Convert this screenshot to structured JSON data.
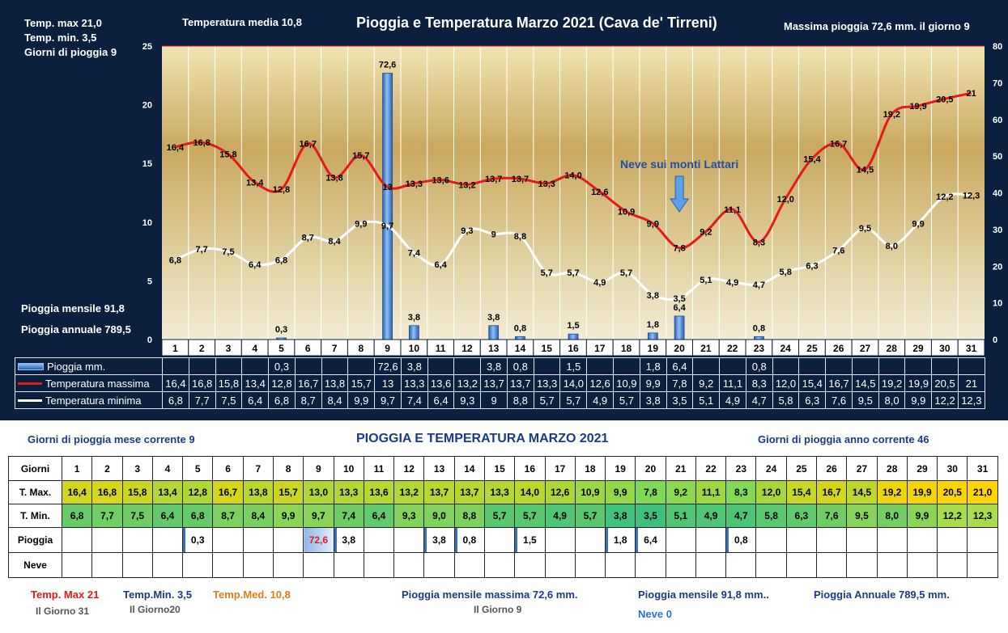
{
  "header": {
    "temp_max": "Temp. max  21,0",
    "temp_min": "Temp.  min. 3,5",
    "giorni_pioggia": "Giorni  di pioggia   9",
    "temp_media": "Temperatura media  10,8",
    "title": "Pioggia e Temperatura Marzo 2021 (Cava de' Tirreni)",
    "massima_pioggia": "Massima pioggia  72,6 mm. il giorno  9",
    "pioggia_mensile": "Pioggia mensile     91,8",
    "pioggia_annuale": "Pioggia annuale    789,5"
  },
  "chart_data": {
    "type": "bar",
    "categories": [
      "1",
      "2",
      "3",
      "4",
      "5",
      "6",
      "7",
      "8",
      "9",
      "10",
      "11",
      "12",
      "13",
      "14",
      "15",
      "16",
      "17",
      "18",
      "19",
      "20",
      "21",
      "22",
      "23",
      "24",
      "25",
      "26",
      "27",
      "28",
      "29",
      "30",
      "31"
    ],
    "y_left": {
      "min": 0,
      "max": 25,
      "ticks": [
        "0",
        "5",
        "10",
        "15",
        "20",
        "25"
      ]
    },
    "y_right": {
      "min": 0,
      "max": 80,
      "ticks": [
        "0",
        "10",
        "20",
        "30",
        "40",
        "50",
        "60",
        "70",
        "80"
      ]
    },
    "series": [
      {
        "name": "Pioggia mm.",
        "type": "bar",
        "axis": "right",
        "color": "#4a86d8",
        "values": [
          null,
          null,
          null,
          null,
          0.3,
          null,
          null,
          null,
          72.6,
          3.8,
          null,
          null,
          3.8,
          0.8,
          null,
          1.5,
          null,
          null,
          1.8,
          6.4,
          null,
          null,
          0.8,
          null,
          null,
          null,
          null,
          null,
          null,
          null,
          null
        ],
        "labels": [
          "",
          "",
          "",
          "",
          "0,3",
          "",
          "",
          "",
          "72,6",
          "3,8",
          "",
          "",
          "3,8",
          "0,8",
          "",
          "1,5",
          "",
          "",
          "1,8",
          "6,4",
          "",
          "",
          "0,8",
          "",
          "",
          "",
          "",
          "",
          "",
          "",
          ""
        ]
      },
      {
        "name": "Temperatura massima",
        "type": "line",
        "axis": "left",
        "color": "#e31a1c",
        "values": [
          16.4,
          16.8,
          15.8,
          13.4,
          12.8,
          16.7,
          13.8,
          15.7,
          13,
          13.3,
          13.6,
          13.2,
          13.7,
          13.7,
          13.3,
          14.0,
          12.6,
          10.9,
          9.9,
          7.8,
          9.2,
          11.1,
          8.3,
          12.0,
          15.4,
          16.7,
          14.5,
          19.2,
          19.9,
          20.5,
          21
        ],
        "labels": [
          "16,4",
          "16,8",
          "15,8",
          "13,4",
          "12,8",
          "16,7",
          "13,8",
          "15,7",
          "13",
          "13,3",
          "13,6",
          "13,2",
          "13,7",
          "13,7",
          "13,3",
          "14,0",
          "12,6",
          "10,9",
          "9,9",
          "7,8",
          "9,2",
          "11,1",
          "8,3",
          "12,0",
          "15,4",
          "16,7",
          "14,5",
          "19,2",
          "19,9",
          "20,5",
          "21"
        ]
      },
      {
        "name": "Temperatura minima",
        "type": "line",
        "axis": "left",
        "color": "#ffffff",
        "values": [
          6.8,
          7.7,
          7.5,
          6.4,
          6.8,
          8.7,
          8.4,
          9.9,
          9.7,
          7.4,
          6.4,
          9.3,
          9,
          8.8,
          5.7,
          5.7,
          4.9,
          5.7,
          3.8,
          3.5,
          5.1,
          4.9,
          4.7,
          5.8,
          6.3,
          7.6,
          9.5,
          8.0,
          9.9,
          12.2,
          12.3
        ],
        "labels": [
          "6,8",
          "7,7",
          "7,5",
          "6,4",
          "6,8",
          "8,7",
          "8,4",
          "9,9",
          "9,7",
          "7,4",
          "6,4",
          "9,3",
          "9",
          "8,8",
          "5,7",
          "5,7",
          "4,9",
          "5,7",
          "3,8",
          "3,5",
          "5,1",
          "4,9",
          "4,7",
          "5,8",
          "6,3",
          "7,6",
          "9,5",
          "8,0",
          "9,9",
          "12,2",
          "12,3"
        ]
      }
    ],
    "annotation": "Neve sui monti Lattari",
    "annotation_day": 20
  },
  "bottom": {
    "giorni_pioggia_mese": "Giorni di pioggia  mese corrente   9",
    "title": "PIOGGIA E TEMPERATURA MARZO 2021",
    "giorni_pioggia_anno": "Giorni di pioggia anno corrente  46",
    "row_labels": [
      "Giorni",
      "T. Max.",
      "T. Min.",
      "Pioggia",
      "Neve"
    ],
    "tmax": [
      "16,4",
      "16,8",
      "15,8",
      "13,4",
      "12,8",
      "16,7",
      "13,8",
      "15,7",
      "13,0",
      "13,3",
      "13,6",
      "13,2",
      "13,7",
      "13,7",
      "13,3",
      "14,0",
      "12,6",
      "10,9",
      "9,9",
      "7,8",
      "9,2",
      "11,1",
      "8,3",
      "12,0",
      "15,4",
      "16,7",
      "14,5",
      "19,2",
      "19,9",
      "20,5",
      "21,0"
    ],
    "tmin": [
      "6,8",
      "7,7",
      "7,5",
      "6,4",
      "6,8",
      "8,7",
      "8,4",
      "9,9",
      "9,7",
      "7,4",
      "6,4",
      "9,3",
      "9,0",
      "8,8",
      "5,7",
      "5,7",
      "4,9",
      "5,7",
      "3,8",
      "3,5",
      "5,1",
      "4,9",
      "4,7",
      "5,8",
      "6,3",
      "7,6",
      "9,5",
      "8,0",
      "9,9",
      "12,2",
      "12,3"
    ],
    "pioggia": [
      "",
      "",
      "",
      "",
      "0,3",
      "",
      "",
      "",
      "72,6",
      "3,8",
      "",
      "",
      "3,8",
      "0,8",
      "",
      "1,5",
      "",
      "",
      "1,8",
      "6,4",
      "",
      "",
      "0,8",
      "",
      "",
      "",
      "",
      "",
      "",
      "",
      ""
    ]
  },
  "footer": {
    "tmax_label": "Temp. Max",
    "tmax_value": "21",
    "tmax_day": "Il Giorno  31",
    "tmin_label": "Temp.Min.",
    "tmin_value": "3,5",
    "tmin_day": "Il Giorno20",
    "tmed_label": "Temp.Med.",
    "tmed_value": "10,8",
    "pmax_label": "Pioggia mensile massima  72,6   mm.",
    "pmax_day": "Il Giorno  9",
    "pmens_label": "Pioggia mensile  91,8    mm..",
    "neve": "Neve 0",
    "pann_label": "Pioggia Annuale  789,5    mm."
  },
  "colors": {
    "background": "#0b1f3f",
    "temp_max": "#e31a1c",
    "temp_min": "#ffffff",
    "rain": "#4a86d8",
    "tmax_low": "#7ed957",
    "tmax_high": "#ffd400",
    "tmin_low": "#3fbf7f",
    "tmin_high": "#a8dc4a"
  }
}
